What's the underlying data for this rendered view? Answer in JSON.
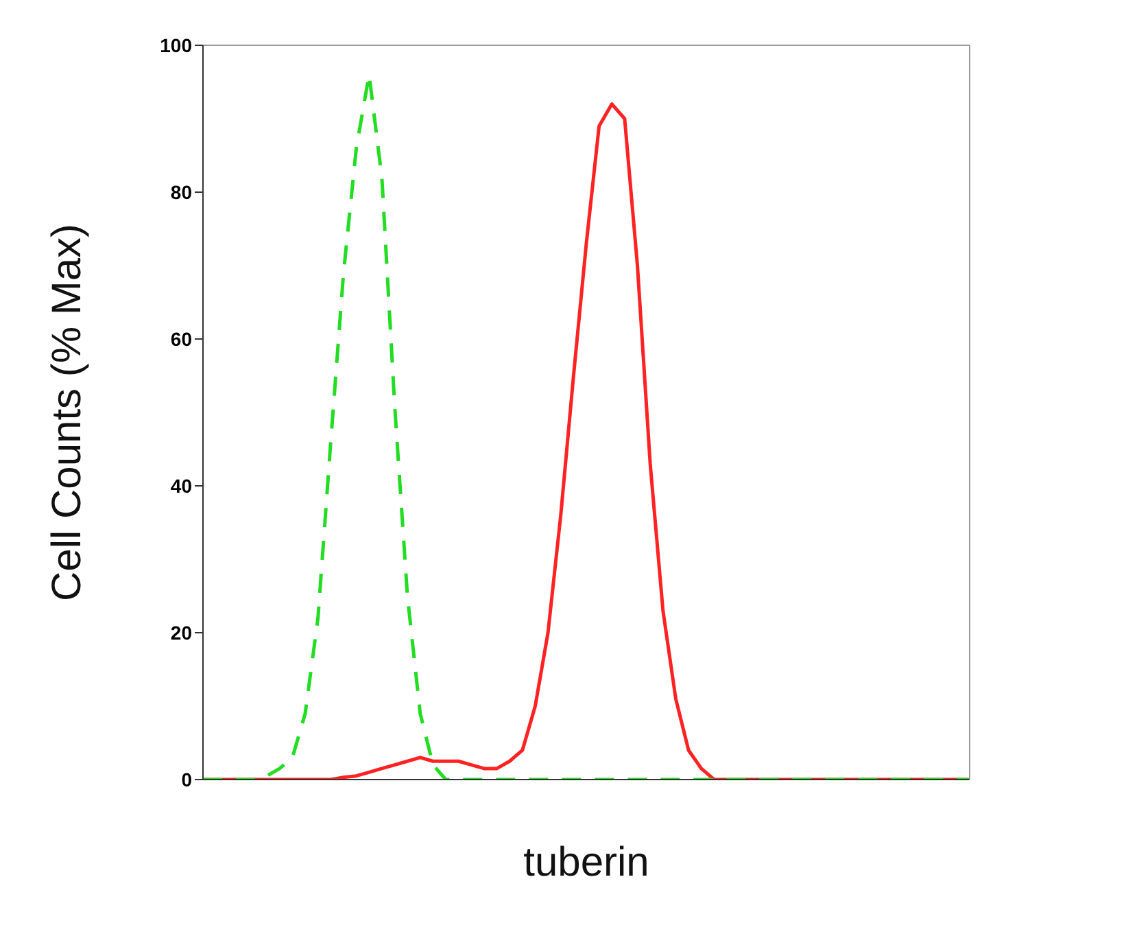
{
  "chart_data": {
    "type": "line",
    "xlabel": "tuberin",
    "ylabel": "Cell Counts (% Max)",
    "categories": [
      null,
      null,
      null,
      null,
      null,
      null,
      null,
      null,
      null,
      null,
      null,
      null,
      null,
      null,
      null,
      null,
      null,
      null,
      null,
      null,
      null,
      null,
      null,
      null,
      null,
      null,
      null,
      null,
      null,
      null,
      null,
      null,
      null,
      null,
      null,
      null,
      null,
      null,
      null,
      null,
      null,
      null,
      null,
      null,
      null,
      null,
      null,
      null,
      null,
      null,
      null,
      null,
      null,
      null,
      null,
      null,
      null,
      null,
      null,
      null,
      null
    ],
    "ylim": [
      0,
      100
    ],
    "yticks": [
      0,
      20,
      40,
      60,
      80,
      100
    ],
    "legend": false,
    "marker": "none",
    "series": [
      {
        "color": "#22dd22",
        "line_style": "dashed",
        "values": [
          0,
          0,
          0,
          0,
          0,
          0.5,
          1.5,
          3,
          9,
          22,
          46,
          69,
          86,
          96,
          82,
          51,
          25,
          9,
          2,
          0,
          0,
          0,
          0,
          0,
          0,
          0,
          0,
          0,
          0,
          0,
          0,
          0,
          0,
          0,
          0,
          0,
          0,
          0,
          0,
          0,
          0,
          0,
          0,
          0,
          0,
          0,
          0,
          0,
          0,
          0,
          0,
          0,
          0,
          0,
          0,
          0,
          0,
          0,
          0,
          0,
          0
        ]
      },
      {
        "color": "#ff2222",
        "line_style": "solid",
        "values": [
          0,
          0,
          0,
          0,
          0,
          0,
          0,
          0,
          0,
          0,
          0,
          0.3,
          0.5,
          1,
          1.5,
          2,
          2.5,
          3,
          2.5,
          2.5,
          2.5,
          2,
          1.5,
          1.5,
          2.5,
          4,
          10,
          20,
          36,
          55,
          73,
          89,
          92,
          90,
          70,
          43,
          23,
          11,
          4,
          1.5,
          0,
          0,
          0,
          0,
          0,
          0,
          0,
          0,
          0,
          0,
          0,
          0,
          0,
          0,
          0,
          0,
          0,
          0,
          0,
          0,
          0
        ]
      }
    ]
  }
}
